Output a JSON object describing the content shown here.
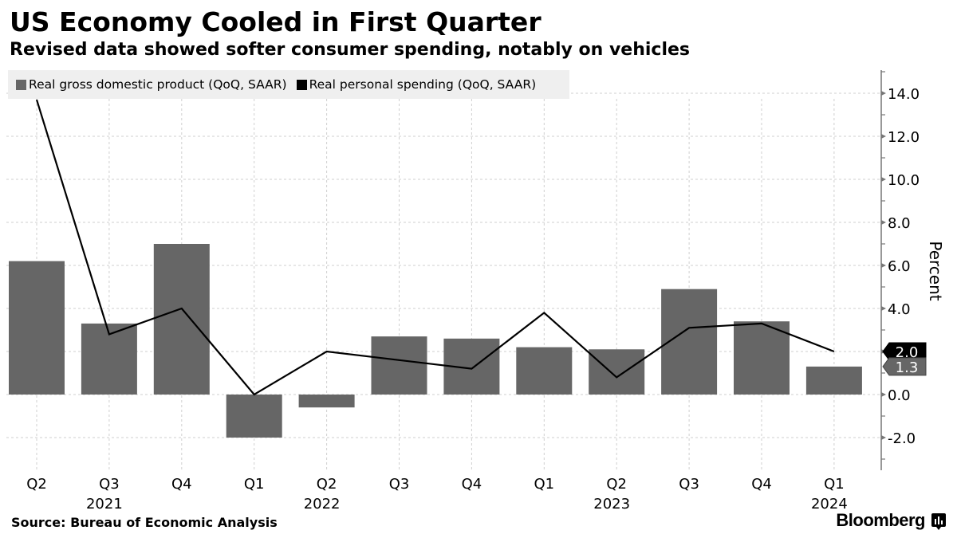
{
  "header": {
    "title": "US Economy Cooled in First Quarter",
    "subtitle": "Revised data showed softer consumer spending, notably on vehicles"
  },
  "footer": {
    "source": "Source: Bureau of Economic Analysis",
    "brand": "Bloomberg",
    "brand_icon": "bloomberg-chart-icon"
  },
  "chart_data": {
    "type": "bar+line",
    "title": "US Economy Cooled in First Quarter",
    "subtitle": "Revised data showed softer consumer spending, notably on vehicles",
    "categories": [
      "Q2",
      "Q3",
      "Q4",
      "Q1",
      "Q2",
      "Q3",
      "Q4",
      "Q1",
      "Q2",
      "Q3",
      "Q4",
      "Q1"
    ],
    "year_labels": [
      "",
      "2021",
      "",
      "",
      "2022",
      "",
      "",
      "",
      "2023",
      "",
      "",
      "2024"
    ],
    "periods": [
      "Q2 2021",
      "Q3 2021",
      "Q4 2021",
      "Q1 2022",
      "Q2 2022",
      "Q3 2022",
      "Q4 2022",
      "Q1 2023",
      "Q2 2023",
      "Q3 2023",
      "Q4 2023",
      "Q1 2024"
    ],
    "series": [
      {
        "name": "Real gross domestic product (QoQ, SAAR)",
        "type": "bar",
        "color": "#666666",
        "values": [
          6.2,
          3.3,
          7.0,
          -2.0,
          -0.6,
          2.7,
          2.6,
          2.2,
          2.1,
          4.9,
          3.4,
          1.3
        ],
        "last_value_label": "1.3"
      },
      {
        "name": "Real personal spending (QoQ, SAAR)",
        "type": "line",
        "color": "#000000",
        "values": [
          13.7,
          2.8,
          4.0,
          0.0,
          2.0,
          1.6,
          1.2,
          3.8,
          0.8,
          3.1,
          3.3,
          2.0
        ],
        "last_value_label": "2.0"
      }
    ],
    "xlabel": "",
    "ylabel": "Percent",
    "ylim": [
      -3.2,
      15.0
    ],
    "yticks": [
      -2.0,
      0.0,
      2.0,
      4.0,
      6.0,
      8.0,
      10.0,
      12.0,
      14.0
    ],
    "ytick_labels": [
      "-2.0",
      "0.0",
      "2.0",
      "4.0",
      "6.0",
      "8.0",
      "10.0",
      "12.0",
      "14.0"
    ],
    "y_axis_position": "right",
    "grid": true,
    "legend_position": "top-left"
  }
}
